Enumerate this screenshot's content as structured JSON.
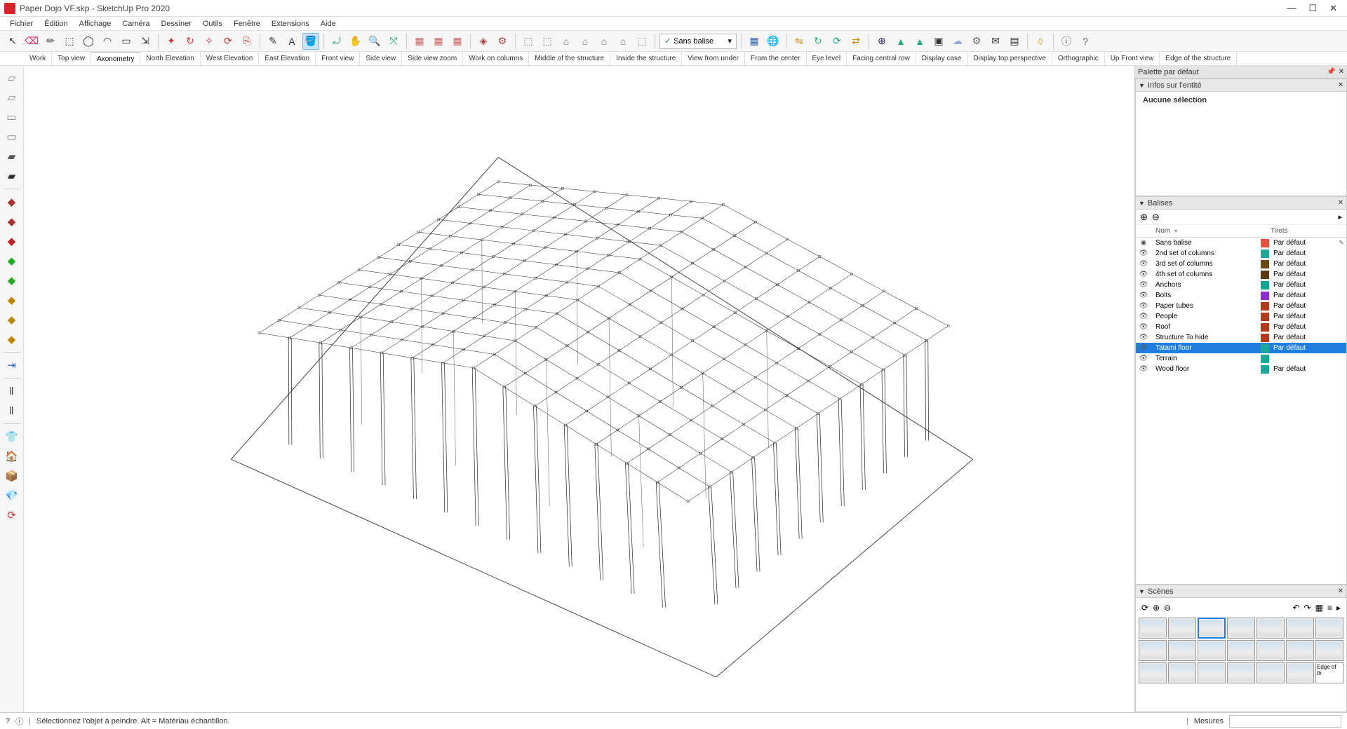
{
  "window": {
    "title": "Paper Dojo VF.skp - SketchUp Pro 2020"
  },
  "menu": [
    "Fichier",
    "Édition",
    "Affichage",
    "Caméra",
    "Dessiner",
    "Outils",
    "Fenêtre",
    "Extensions",
    "Aide"
  ],
  "tag_selector": {
    "label": "Sans balise",
    "check": "✓"
  },
  "scenes": {
    "tabs": [
      "Work",
      "Top view",
      "Axonometry",
      "North Elevation",
      "West Elevation",
      "East Elevation",
      "Front view",
      "Side view",
      "Side view zoom",
      "Work on columns",
      "Middle of the structure",
      "Inside the structure",
      "View from under",
      "From the center",
      "Eye level",
      "Facing central row",
      "Display case",
      "Display top perspective",
      "Orthographic",
      "Up Front view",
      "Edge of the structure"
    ],
    "active_index": 2
  },
  "panels": {
    "tray_title": "Palette par défaut",
    "entity_info": {
      "title": "Infos sur l'entité",
      "none": "Aucune sélection"
    },
    "tags": {
      "title": "Balises",
      "col_name": "Nom",
      "col_dash": "Tirets",
      "default_dash": "Par défaut",
      "items": [
        {
          "name": "Sans balise",
          "color": "#e94f3a",
          "visible": true,
          "radio": true
        },
        {
          "name": "2nd set of columns",
          "color": "#1aa89a",
          "visible": true
        },
        {
          "name": "3rd set of columns",
          "color": "#6b4a12",
          "visible": true
        },
        {
          "name": "4th set of columns",
          "color": "#5a3b15",
          "visible": true
        },
        {
          "name": "Anchors",
          "color": "#12a58f",
          "visible": true
        },
        {
          "name": "Bolts",
          "color": "#8a2fd1",
          "visible": true
        },
        {
          "name": "Paper tubes",
          "color": "#b03a1a",
          "visible": true
        },
        {
          "name": "People",
          "color": "#b03a1a",
          "visible": true
        },
        {
          "name": "Roof",
          "color": "#b03a1a",
          "visible": true
        },
        {
          "name": "Structure To hide",
          "color": "#b03a1a",
          "visible": true
        },
        {
          "name": "Tatami floor",
          "color": "#1aa89a",
          "visible": true,
          "selected": true
        },
        {
          "name": "Terrain",
          "color": "#1aa89a",
          "visible": true,
          "nodash": true
        },
        {
          "name": "Wood floor",
          "color": "#1aa89a",
          "visible": true
        }
      ]
    },
    "scenes_panel": {
      "title": "Scènes",
      "thumb_count": 21,
      "selected_index": 2,
      "last_label": "Edge of th"
    }
  },
  "status": {
    "hint": "Sélectionnez l'objet à peindre. Alt = Matériau échantillon.",
    "measure_label": "Mesures"
  },
  "toolbar_icons": {
    "group1": [
      "↖",
      "⌫",
      "✏",
      "⬚",
      "◯",
      "◠",
      "▭",
      "⇲"
    ],
    "group2": [
      "✦",
      "↻",
      "✧",
      "⟳",
      "⎘"
    ],
    "group3": [
      "✎",
      "A",
      "🪣"
    ],
    "group4": [
      "⤾",
      "✋",
      "🔍",
      "⤧"
    ],
    "group5": [
      "▦",
      "▦",
      "▦"
    ],
    "group6": [
      "◈",
      "⚙"
    ],
    "group7": [
      "⬚",
      "⬚",
      "⌂",
      "⌂",
      "⌂",
      "⌂",
      "⬚"
    ],
    "group8": [
      "▦",
      "🌐"
    ],
    "group9": [
      "⇋",
      "↻",
      "⟳",
      "⇄"
    ],
    "group10": [
      "⊕",
      "▲",
      "▲",
      "▣",
      "☁",
      "⚙",
      "✉",
      "▤"
    ],
    "group11": [
      "◊"
    ],
    "group12": [
      "ⓘ",
      "?"
    ]
  },
  "left_icons": [
    "▱",
    "▱",
    "▭",
    "▭",
    "▰",
    "▰",
    "—",
    "◆",
    "◆",
    "◆",
    "◆",
    "◆",
    "◆",
    "◆",
    "◆",
    "—",
    "⇥",
    "—",
    "‖",
    "‖",
    "—",
    "👕",
    "🏠",
    "📦",
    "💎",
    "⟳"
  ],
  "left_colors": [
    "#888",
    "#888",
    "#888",
    "#777",
    "#555",
    "#333",
    "",
    "#a33",
    "#a33",
    "#b22",
    "#2a2",
    "#2a2",
    "#b80",
    "#b80",
    "#b80",
    "",
    "#36c",
    "",
    "#333",
    "#333",
    "",
    "#e8c040",
    "#2a9a3a",
    "#2a61c0",
    "#7a2fc0",
    "#c02f2f"
  ],
  "viewport": {
    "stroke": "#222222",
    "ground_stroke": "#555555",
    "grid": {
      "rows": 12,
      "cols": 14
    }
  }
}
